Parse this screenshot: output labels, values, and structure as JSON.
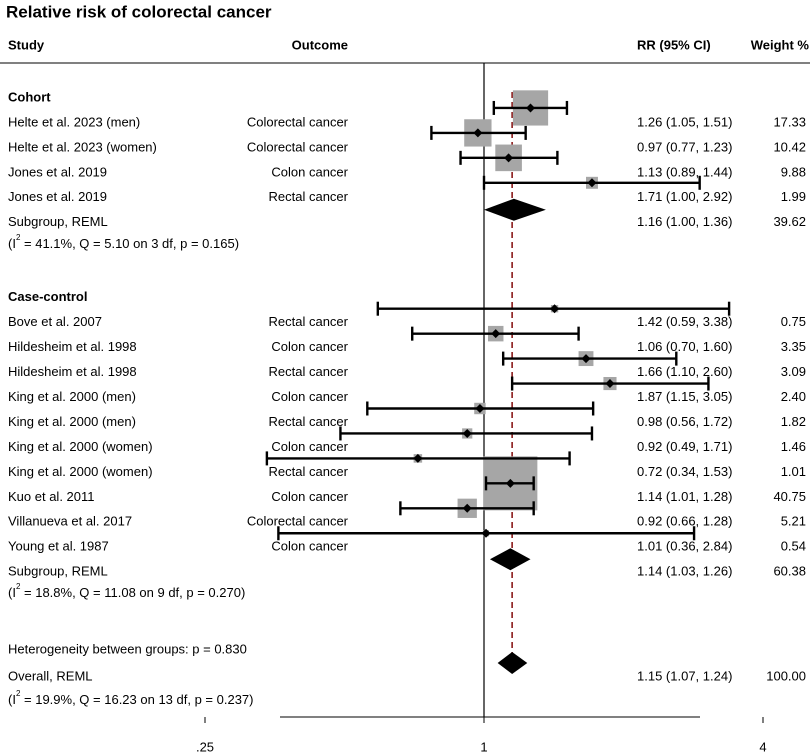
{
  "chart_data": {
    "type": "forest",
    "title": "Relative risk of colorectal cancer",
    "columns": {
      "study": "Study",
      "outcome": "Outcome",
      "rr": "RR (95% CI)",
      "weight": "Weight %"
    },
    "x_scale": "log",
    "x_ticks": [
      0.25,
      1,
      4
    ],
    "x_tick_labels": [
      ".25",
      "1",
      "4"
    ],
    "reference_line": 1,
    "overall_line": 1.15,
    "groups": [
      {
        "name": "Cohort",
        "studies": [
          {
            "study": "Helte et al. 2023 (men)",
            "outcome": "Colorectal cancer",
            "rr": 1.26,
            "lo": 1.05,
            "hi": 1.51,
            "rr_text": "1.26 (1.05, 1.51)",
            "weight": "17.33",
            "weight_value": 17.33
          },
          {
            "study": "Helte et al. 2023 (women)",
            "outcome": "Colorectal cancer",
            "rr": 0.97,
            "lo": 0.77,
            "hi": 1.23,
            "rr_text": "0.97 (0.77, 1.23)",
            "weight": "10.42",
            "weight_value": 10.42
          },
          {
            "study": "Jones et al. 2019",
            "outcome": "Colon cancer",
            "rr": 1.13,
            "lo": 0.89,
            "hi": 1.44,
            "rr_text": "1.13 (0.89, 1.44)",
            "weight": "9.88",
            "weight_value": 9.88
          },
          {
            "study": "Jones et al. 2019",
            "outcome": "Rectal cancer",
            "rr": 1.71,
            "lo": 1.0,
            "hi": 2.92,
            "rr_text": "1.71 (1.00, 2.92)",
            "weight": "1.99",
            "weight_value": 1.99
          }
        ],
        "subgroup": {
          "label": "Subgroup, REML",
          "rr": 1.16,
          "lo": 1.0,
          "hi": 1.36,
          "rr_text": "1.16 (1.00, 1.36)",
          "weight": "39.62",
          "het_open": "(I",
          "het_sup": "2",
          "het_rest": " = 41.1%, Q = 5.10 on 3 df, p = 0.165)"
        }
      },
      {
        "name": "Case-control",
        "studies": [
          {
            "study": "Bove et al. 2007",
            "outcome": "Rectal cancer",
            "rr": 1.42,
            "lo": 0.59,
            "hi": 3.38,
            "rr_text": "1.42 (0.59, 3.38)",
            "weight": "0.75",
            "weight_value": 0.75
          },
          {
            "study": "Hildesheim et al. 1998",
            "outcome": "Colon cancer",
            "rr": 1.06,
            "lo": 0.7,
            "hi": 1.6,
            "rr_text": "1.06 (0.70, 1.60)",
            "weight": "3.35",
            "weight_value": 3.35
          },
          {
            "study": "Hildesheim et al. 1998",
            "outcome": "Rectal cancer",
            "rr": 1.66,
            "lo": 1.1,
            "hi": 2.6,
            "rr_text": "1.66 (1.10, 2.60)",
            "weight": "3.09",
            "weight_value": 3.09
          },
          {
            "study": "King et al. 2000 (men)",
            "outcome": "Colon cancer",
            "rr": 1.87,
            "lo": 1.15,
            "hi": 3.05,
            "rr_text": "1.87 (1.15, 3.05)",
            "weight": "2.40",
            "weight_value": 2.4
          },
          {
            "study": "King et al. 2000 (men)",
            "outcome": "Rectal cancer",
            "rr": 0.98,
            "lo": 0.56,
            "hi": 1.72,
            "rr_text": "0.98 (0.56, 1.72)",
            "weight": "1.82",
            "weight_value": 1.82
          },
          {
            "study": "King et al. 2000 (women)",
            "outcome": "Colon cancer",
            "rr": 0.92,
            "lo": 0.49,
            "hi": 1.71,
            "rr_text": "0.92 (0.49, 1.71)",
            "weight": "1.46",
            "weight_value": 1.46
          },
          {
            "study": "King et al. 2000 (women)",
            "outcome": "Rectal cancer",
            "rr": 0.72,
            "lo": 0.34,
            "hi": 1.53,
            "rr_text": "0.72 (0.34, 1.53)",
            "weight": "1.01",
            "weight_value": 1.01
          },
          {
            "study": "Kuo et al. 2011",
            "outcome": "Colon cancer",
            "rr": 1.14,
            "lo": 1.01,
            "hi": 1.28,
            "rr_text": "1.14 (1.01, 1.28)",
            "weight": "40.75",
            "weight_value": 40.75
          },
          {
            "study": "Villanueva et al. 2017",
            "outcome": "Colorectal cancer",
            "rr": 0.92,
            "lo": 0.66,
            "hi": 1.28,
            "rr_text": "0.92 (0.66, 1.28)",
            "weight": "5.21",
            "weight_value": 5.21
          },
          {
            "study": "Young et al. 1987",
            "outcome": "Colon cancer",
            "rr": 1.01,
            "lo": 0.36,
            "hi": 2.84,
            "rr_text": "1.01 (0.36, 2.84)",
            "weight": "0.54",
            "weight_value": 0.54
          }
        ],
        "subgroup": {
          "label": "Subgroup, REML",
          "rr": 1.14,
          "lo": 1.03,
          "hi": 1.26,
          "rr_text": "1.14 (1.03, 1.26)",
          "weight": "60.38",
          "het_open": "(I",
          "het_sup": "2",
          "het_rest": " = 18.8%, Q = 11.08 on 9 df, p = 0.270)"
        }
      }
    ],
    "between_groups": "Heterogeneity between groups: p = 0.830",
    "overall": {
      "label": "Overall, REML",
      "rr": 1.15,
      "lo": 1.07,
      "hi": 1.24,
      "rr_text": "1.15 (1.07, 1.24)",
      "weight": "100.00",
      "het_open": "(I",
      "het_sup": "2",
      "het_rest": " = 19.9%, Q = 16.23 on 13 df, p = 0.237)"
    },
    "colors": {
      "square": "#a6a6a6",
      "marker": "#000000",
      "overall_line": "#8b1a1a",
      "reference_line": "#000000"
    }
  }
}
